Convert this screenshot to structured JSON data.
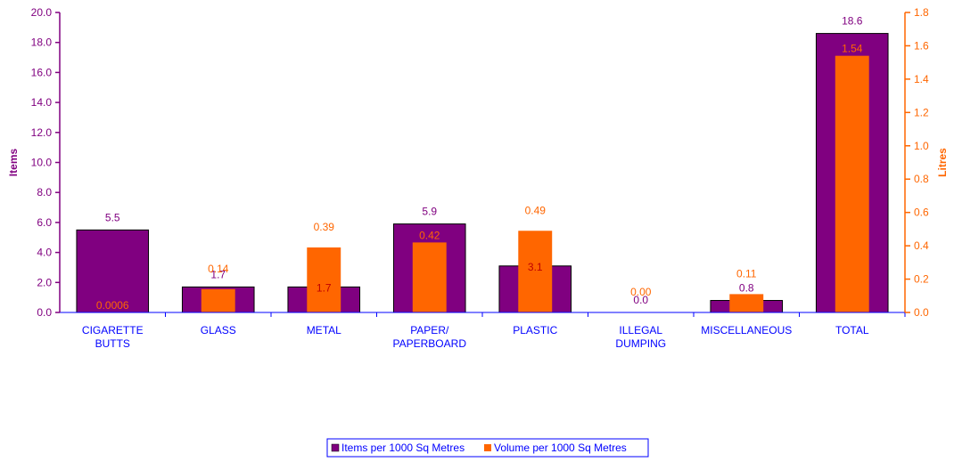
{
  "chart_data": {
    "type": "bar",
    "categories": [
      "CIGARETTE BUTTS",
      "GLASS",
      "METAL",
      "PAPER/ PAPERBOARD",
      "PLASTIC",
      "ILLEGAL DUMPING",
      "MISCELLANEOUS",
      "TOTAL"
    ],
    "category_lines": [
      [
        "CIGARETTE",
        "BUTTS"
      ],
      [
        "GLASS"
      ],
      [
        "METAL"
      ],
      [
        "PAPER/",
        "PAPERBOARD"
      ],
      [
        "PLASTIC"
      ],
      [
        "ILLEGAL",
        "DUMPING"
      ],
      [
        "MISCELLANEOUS"
      ],
      [
        "TOTAL"
      ]
    ],
    "series": [
      {
        "name": "Items per 1000 Sq Metres",
        "axis": "left",
        "color": "#800080",
        "values": [
          5.5,
          1.7,
          1.7,
          5.9,
          3.1,
          0.0,
          0.8,
          18.6
        ],
        "labels": [
          "5.5",
          "1.7",
          "1.7",
          "5.9",
          "3.1",
          "0.0",
          "0.8",
          "18.6"
        ]
      },
      {
        "name": "Volume per 1000 Sq Metres",
        "axis": "right",
        "color": "#ff6600",
        "values": [
          0.0006,
          0.14,
          0.39,
          0.42,
          0.49,
          0.0,
          0.11,
          1.54
        ],
        "labels": [
          "0.0006",
          "0.14",
          "0.39",
          "0.42",
          "0.49",
          "0.00",
          "0.11",
          "1.54"
        ]
      }
    ],
    "ylabel": "Items",
    "y2label": "Litres",
    "ylim": [
      0,
      20
    ],
    "y2lim": [
      0,
      1.8
    ],
    "yticks": [
      "0.0",
      "2.0",
      "4.0",
      "6.0",
      "8.0",
      "10.0",
      "12.0",
      "14.0",
      "16.0",
      "18.0",
      "20.0"
    ],
    "y2ticks": [
      "0.0",
      "0.2",
      "0.4",
      "0.6",
      "0.8",
      "1.0",
      "1.2",
      "1.4",
      "1.6",
      "1.8"
    ],
    "grid": false,
    "legend_position": "bottom",
    "colors": {
      "left_axis": "#800080",
      "right_axis": "#ff6600",
      "category_text": "#0000ff",
      "inner_label_on_orange": "#c00000",
      "inner_label_on_purple": "#ff6600"
    }
  }
}
